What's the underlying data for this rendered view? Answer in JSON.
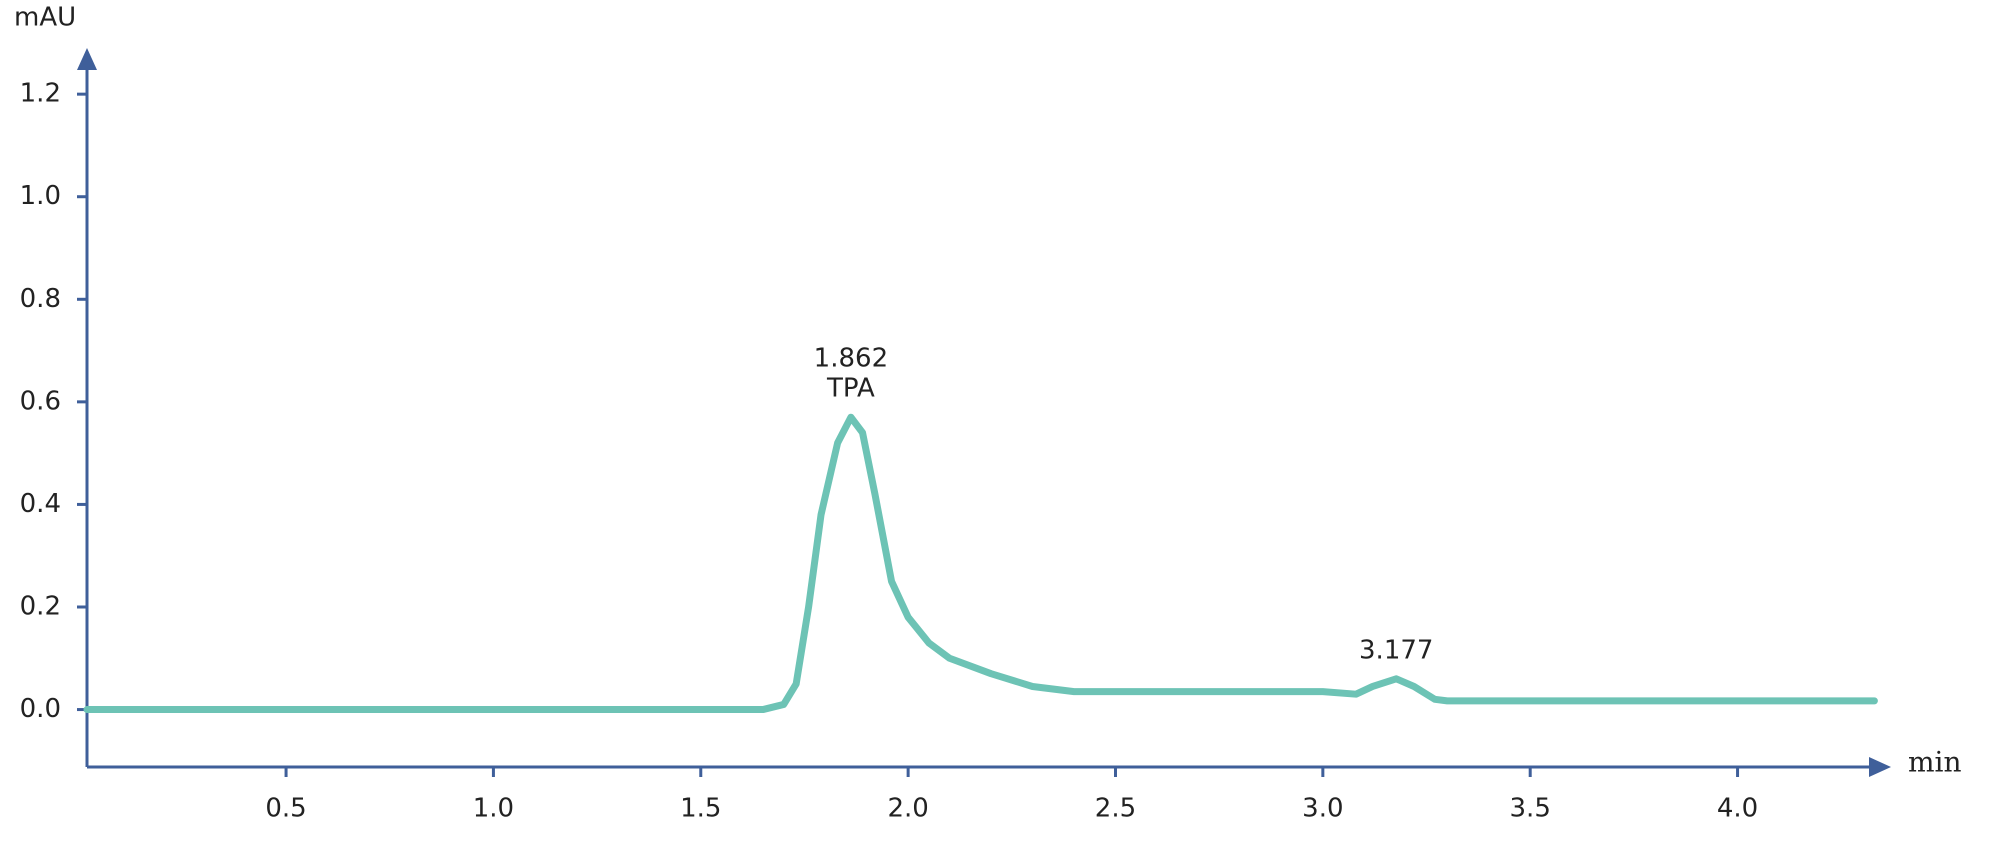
{
  "chart_data": {
    "type": "line",
    "y_label": "mAU",
    "x_label": "min",
    "x": [
      0.02,
      1.65,
      1.7,
      1.73,
      1.76,
      1.79,
      1.83,
      1.862,
      1.89,
      1.92,
      1.96,
      2.0,
      2.05,
      2.1,
      2.2,
      2.3,
      2.4,
      2.5,
      3.0,
      3.08,
      3.12,
      3.177,
      3.22,
      3.27,
      3.3,
      4.33
    ],
    "series": [
      {
        "name": "TPA",
        "color": "#6dc3b5",
        "values": [
          0,
          0,
          0.01,
          0.05,
          0.2,
          0.38,
          0.52,
          0.57,
          0.54,
          0.42,
          0.25,
          0.18,
          0.13,
          0.1,
          0.07,
          0.045,
          0.035,
          0.035,
          0.035,
          0.03,
          0.045,
          0.06,
          0.045,
          0.02,
          0.017,
          0.017
        ]
      }
    ],
    "xlim": [
      0.02,
      4.37
    ],
    "ylim": [
      -0.112,
      1.29
    ],
    "xticks": [
      0.5,
      {
        "value": 1,
        "label": "1.0"
      },
      1.5,
      {
        "value": 2,
        "label": "2.0"
      },
      2.5,
      {
        "value": 3,
        "label": "3.0"
      },
      3.5,
      {
        "value": 4,
        "label": "4.0"
      }
    ],
    "yticks": [
      {
        "value": 0,
        "label": "0.0"
      },
      0.2,
      0.4,
      0.6,
      0.8,
      {
        "value": 1,
        "label": "1.0"
      },
      1.2
    ],
    "axis_color": "#3f5f9a",
    "grid": false,
    "annotations": [
      {
        "x": 1.862,
        "label": "1.862",
        "text": "TPA"
      },
      {
        "x": 3.177,
        "label": "3.177"
      }
    ]
  }
}
